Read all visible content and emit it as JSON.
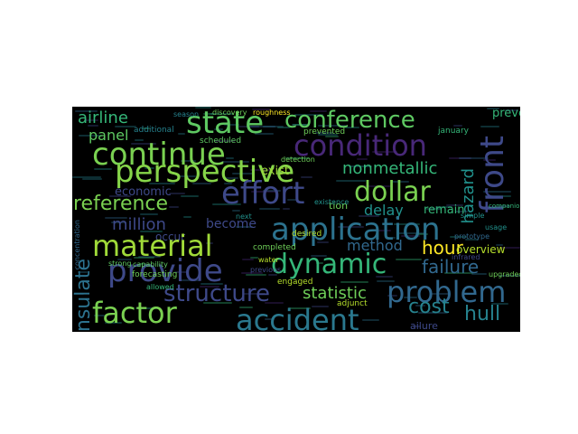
{
  "words": [
    {
      "text": "state",
      "color": "#5ec962",
      "size": 34
    },
    {
      "text": "conference",
      "color": "#5ec962",
      "size": 26
    },
    {
      "text": "condition",
      "color": "#482878",
      "size": 32
    },
    {
      "text": "continue",
      "color": "#7ad151",
      "size": 34
    },
    {
      "text": "perspective",
      "color": "#86d549",
      "size": 34
    },
    {
      "text": "effort",
      "color": "#3e4989",
      "size": 34
    },
    {
      "text": "dollar",
      "color": "#7ad151",
      "size": 30
    },
    {
      "text": "front",
      "color": "#3e4989",
      "size": 36
    },
    {
      "text": "airline",
      "color": "#35b779",
      "size": 18
    },
    {
      "text": "panel",
      "color": "#5ec962",
      "size": 16
    },
    {
      "text": "nonmetallic",
      "color": "#35b779",
      "size": 18
    },
    {
      "text": "economic",
      "color": "#3e4989",
      "size": 13
    },
    {
      "text": "hazard",
      "color": "#21918c",
      "size": 18
    },
    {
      "text": "reference",
      "color": "#7ad151",
      "size": 22
    },
    {
      "text": "million",
      "color": "#3e4989",
      "size": 18
    },
    {
      "text": "become",
      "color": "#3e4989",
      "size": 14
    },
    {
      "text": "tion",
      "color": "#6ece58",
      "size": 11
    },
    {
      "text": "delay",
      "color": "#21918c",
      "size": 16
    },
    {
      "text": "remain",
      "color": "#35b779",
      "size": 13
    },
    {
      "text": "application",
      "color": "#2c728e",
      "size": 34
    },
    {
      "text": "occur",
      "color": "#3e4989",
      "size": 12
    },
    {
      "text": "material",
      "color": "#a0da39",
      "size": 32
    },
    {
      "text": "method",
      "color": "#31688e",
      "size": 16
    },
    {
      "text": "hour",
      "color": "#fde725",
      "size": 20
    },
    {
      "text": "overview",
      "color": "#b5de2b",
      "size": 12
    },
    {
      "text": "insulate",
      "color": "#2c728e",
      "size": 22
    },
    {
      "text": "provide",
      "color": "#3e4989",
      "size": 34
    },
    {
      "text": "dynamic",
      "color": "#35b779",
      "size": 30
    },
    {
      "text": "failure",
      "color": "#31688e",
      "size": 20
    },
    {
      "text": "structure",
      "color": "#3e4989",
      "size": 26
    },
    {
      "text": "statistic",
      "color": "#6ece58",
      "size": 18
    },
    {
      "text": "problem",
      "color": "#31688e",
      "size": 32
    },
    {
      "text": "factor",
      "color": "#7ad151",
      "size": 32
    },
    {
      "text": "accident",
      "color": "#2a788e",
      "size": 32
    },
    {
      "text": "cost",
      "color": "#26828e",
      "size": 22
    },
    {
      "text": "hull",
      "color": "#26828e",
      "size": 22
    },
    {
      "text": "exist",
      "color": "#a0da39",
      "size": 13
    },
    {
      "text": "prevent",
      "color": "#35b779",
      "size": 13
    },
    {
      "text": "additional",
      "color": "#26828e",
      "size": 9
    },
    {
      "text": "scheduled",
      "color": "#5ec962",
      "size": 9
    },
    {
      "text": "prevented",
      "color": "#6ece58",
      "size": 9
    },
    {
      "text": "detection",
      "color": "#6ece58",
      "size": 8
    },
    {
      "text": "discovery",
      "color": "#6ece58",
      "size": 8
    },
    {
      "text": "roughness",
      "color": "#fde725",
      "size": 8
    },
    {
      "text": "season",
      "color": "#26828e",
      "size": 8
    },
    {
      "text": "january",
      "color": "#35b779",
      "size": 9
    },
    {
      "text": "concentration",
      "color": "#31688e",
      "size": 8
    },
    {
      "text": "next",
      "color": "#21918c",
      "size": 8
    },
    {
      "text": "desired",
      "color": "#b5de2b",
      "size": 9
    },
    {
      "text": "prototype",
      "color": "#31688e",
      "size": 8
    },
    {
      "text": "infrared",
      "color": "#3e4989",
      "size": 8
    },
    {
      "text": "completed",
      "color": "#6ece58",
      "size": 9
    },
    {
      "text": "strong",
      "color": "#5ec962",
      "size": 8
    },
    {
      "text": "capability",
      "color": "#5ec962",
      "size": 8
    },
    {
      "text": "water",
      "color": "#b5de2b",
      "size": 8
    },
    {
      "text": "previous",
      "color": "#3e4989",
      "size": 8
    },
    {
      "text": "engaged",
      "color": "#b5de2b",
      "size": 9
    },
    {
      "text": "upgraded",
      "color": "#6ece58",
      "size": 8
    },
    {
      "text": "forecasting",
      "color": "#6ece58",
      "size": 9
    },
    {
      "text": "allowed",
      "color": "#35b779",
      "size": 8
    },
    {
      "text": "adjunct",
      "color": "#b5de2b",
      "size": 9
    },
    {
      "text": "ailure",
      "color": "#3e4989",
      "size": 11
    },
    {
      "text": "existence",
      "color": "#21918c",
      "size": 8
    },
    {
      "text": "usage",
      "color": "#21918c",
      "size": 8
    },
    {
      "text": "companion",
      "color": "#35b779",
      "size": 7
    },
    {
      "text": "simple",
      "color": "#21918c",
      "size": 8
    }
  ]
}
